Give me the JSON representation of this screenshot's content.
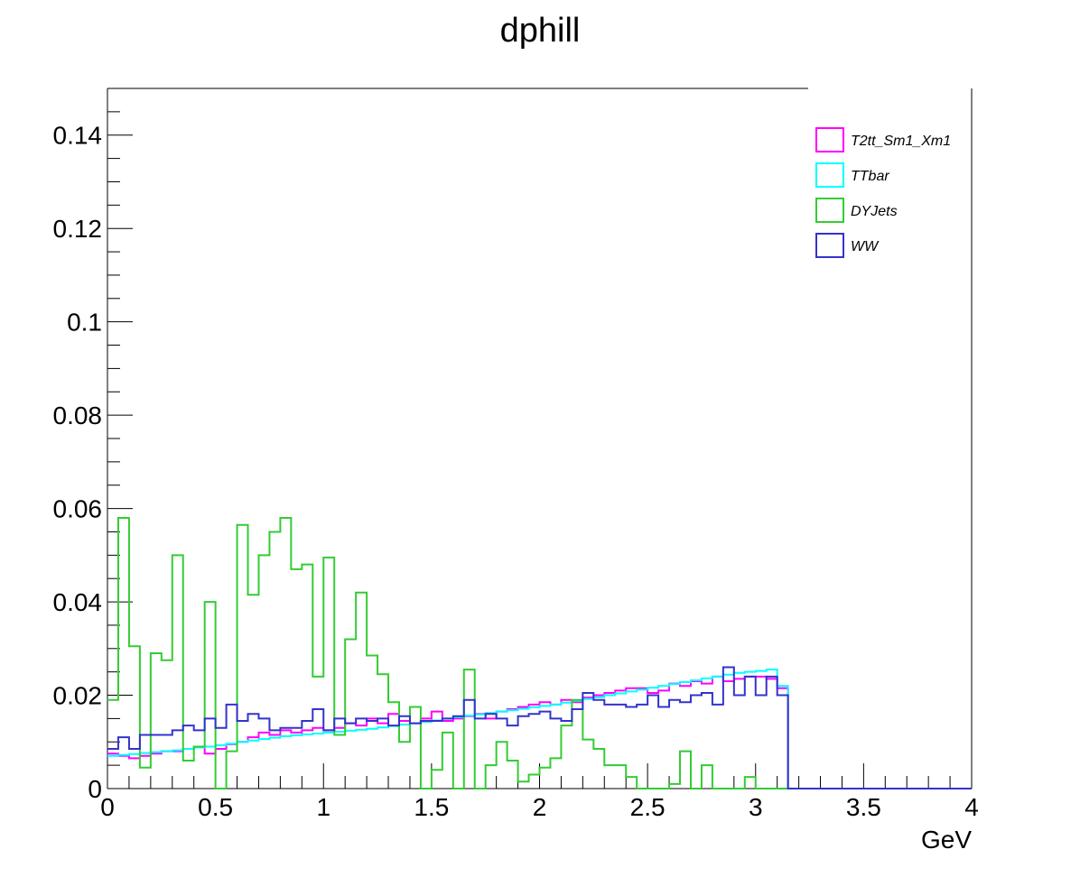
{
  "chart_data": {
    "type": "line",
    "title": "dphill",
    "xlabel": "GeV",
    "ylabel": "",
    "xlim": [
      0,
      4
    ],
    "ylim": [
      0,
      0.15
    ],
    "x_ticks": [
      "0",
      "0.5",
      "1",
      "1.5",
      "2",
      "2.5",
      "3",
      "3.5",
      "4"
    ],
    "y_ticks": [
      "0",
      "0.02",
      "0.04",
      "0.06",
      "0.08",
      "0.1",
      "0.12",
      "0.14"
    ],
    "bin_width": 0.05,
    "legend_position": "top-right",
    "grid": false,
    "series": [
      {
        "name": "T2tt_Sm1_Xm1",
        "color": "#ff00ff",
        "values": [
          0.0075,
          0.007,
          0.0065,
          0.007,
          0.0075,
          0.008,
          0.008,
          0.0085,
          0.009,
          0.0075,
          0.0085,
          0.0095,
          0.01,
          0.011,
          0.012,
          0.0115,
          0.0125,
          0.012,
          0.0125,
          0.013,
          0.0125,
          0.013,
          0.014,
          0.0135,
          0.015,
          0.014,
          0.016,
          0.0145,
          0.014,
          0.015,
          0.0165,
          0.0145,
          0.015,
          0.0155,
          0.016,
          0.015,
          0.0165,
          0.017,
          0.0175,
          0.018,
          0.0185,
          0.018,
          0.019,
          0.0185,
          0.0195,
          0.02,
          0.0205,
          0.021,
          0.0215,
          0.0215,
          0.0205,
          0.021,
          0.0225,
          0.022,
          0.023,
          0.0225,
          0.024,
          0.023,
          0.0235,
          0.024,
          0.024,
          0.0235,
          0.0215,
          0,
          0,
          0,
          0,
          0,
          0,
          0,
          0,
          0,
          0,
          0,
          0,
          0,
          0,
          0,
          0,
          0
        ]
      },
      {
        "name": "TTbar",
        "color": "#00ffff",
        "values": [
          0.007,
          0.0072,
          0.0074,
          0.0076,
          0.0078,
          0.008,
          0.0082,
          0.0085,
          0.0088,
          0.009,
          0.0093,
          0.0096,
          0.01,
          0.0103,
          0.0106,
          0.0109,
          0.0112,
          0.0114,
          0.0116,
          0.0118,
          0.012,
          0.0122,
          0.0124,
          0.0126,
          0.0128,
          0.0131,
          0.0134,
          0.0137,
          0.014,
          0.0143,
          0.0146,
          0.015,
          0.0153,
          0.0156,
          0.0159,
          0.0162,
          0.0165,
          0.0168,
          0.0171,
          0.0174,
          0.0177,
          0.018,
          0.0184,
          0.0188,
          0.0192,
          0.0196,
          0.02,
          0.0204,
          0.0208,
          0.0212,
          0.0216,
          0.022,
          0.0224,
          0.0228,
          0.0232,
          0.0236,
          0.024,
          0.0244,
          0.0248,
          0.025,
          0.0252,
          0.0255,
          0.022,
          0,
          0,
          0,
          0,
          0,
          0,
          0,
          0,
          0,
          0,
          0,
          0,
          0,
          0,
          0,
          0,
          0
        ]
      },
      {
        "name": "DYJets",
        "color": "#33cc33",
        "values": [
          0.019,
          0.058,
          0.0305,
          0.0045,
          0.029,
          0.0275,
          0.05,
          0.006,
          0.009,
          0.04,
          0,
          0.008,
          0.0565,
          0.0415,
          0.05,
          0.055,
          0.058,
          0.047,
          0.048,
          0.024,
          0.0495,
          0.0115,
          0.032,
          0.042,
          0.0285,
          0.0245,
          0.0185,
          0.01,
          0.0175,
          0,
          0.004,
          0.012,
          0,
          0.0255,
          0,
          0.005,
          0.01,
          0.006,
          0.0015,
          0.003,
          0.0045,
          0.0065,
          0.0135,
          0.019,
          0.0105,
          0.0085,
          0.005,
          0.005,
          0.0025,
          0,
          0,
          0,
          0.001,
          0.008,
          0,
          0.005,
          0,
          0,
          0,
          0.0025,
          0,
          0,
          0,
          0,
          0,
          0,
          0,
          0,
          0,
          0,
          0,
          0,
          0,
          0,
          0,
          0,
          0,
          0,
          0,
          0
        ]
      },
      {
        "name": "WW",
        "color": "#3333cc",
        "values": [
          0.0085,
          0.011,
          0.0085,
          0.0115,
          0.0115,
          0.0115,
          0.0125,
          0.0135,
          0.0125,
          0.015,
          0.013,
          0.018,
          0.0145,
          0.016,
          0.015,
          0.0125,
          0.013,
          0.013,
          0.0145,
          0.017,
          0.0125,
          0.015,
          0.014,
          0.015,
          0.0145,
          0.015,
          0.0135,
          0.0155,
          0.014,
          0.0145,
          0.0145,
          0.015,
          0.0155,
          0.019,
          0.015,
          0.016,
          0.015,
          0.0135,
          0.0155,
          0.016,
          0.0165,
          0.015,
          0.0145,
          0.017,
          0.0205,
          0.019,
          0.018,
          0.018,
          0.0175,
          0.018,
          0.02,
          0.0175,
          0.019,
          0.0185,
          0.02,
          0.0205,
          0.018,
          0.026,
          0.02,
          0.024,
          0.02,
          0.024,
          0.02,
          0,
          0,
          0,
          0,
          0,
          0,
          0,
          0,
          0,
          0,
          0,
          0,
          0,
          0,
          0,
          0,
          0
        ]
      }
    ]
  }
}
